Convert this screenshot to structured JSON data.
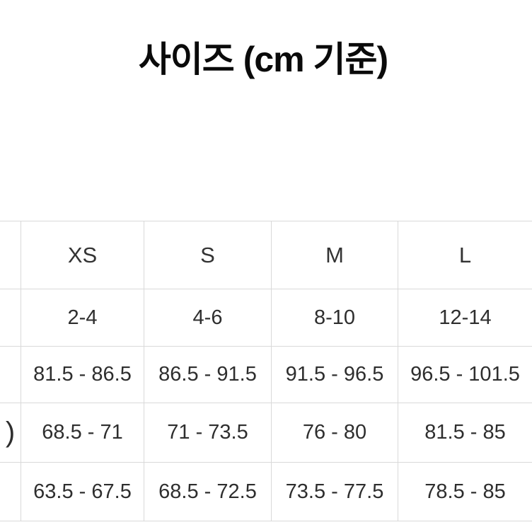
{
  "title": "사이즈 (cm 기준)",
  "colors": {
    "background": "#ffffff",
    "grid": "#d9d9d9",
    "text": "#2e2e2e",
    "title_text": "#0a0a0a"
  },
  "chart_data": {
    "type": "table",
    "title": "사이즈 (cm 기준)",
    "unit": "cm",
    "columns": [
      "XS",
      "S",
      "M",
      "L"
    ],
    "rows": [
      {
        "label": "",
        "values": [
          "2-4",
          "4-6",
          "8-10",
          "12-14"
        ]
      },
      {
        "label": "",
        "values": [
          "81.5 - 86.5",
          "86.5 - 91.5",
          "91.5 - 96.5",
          "96.5 - 101.5"
        ]
      },
      {
        "label": ")",
        "values": [
          "68.5 - 71",
          "71 - 73.5",
          "76 - 80",
          "81.5 - 85"
        ]
      },
      {
        "label": "",
        "values": [
          "63.5 - 67.5",
          "68.5 - 72.5",
          "73.5 - 77.5",
          "78.5 - 85"
        ]
      }
    ]
  }
}
